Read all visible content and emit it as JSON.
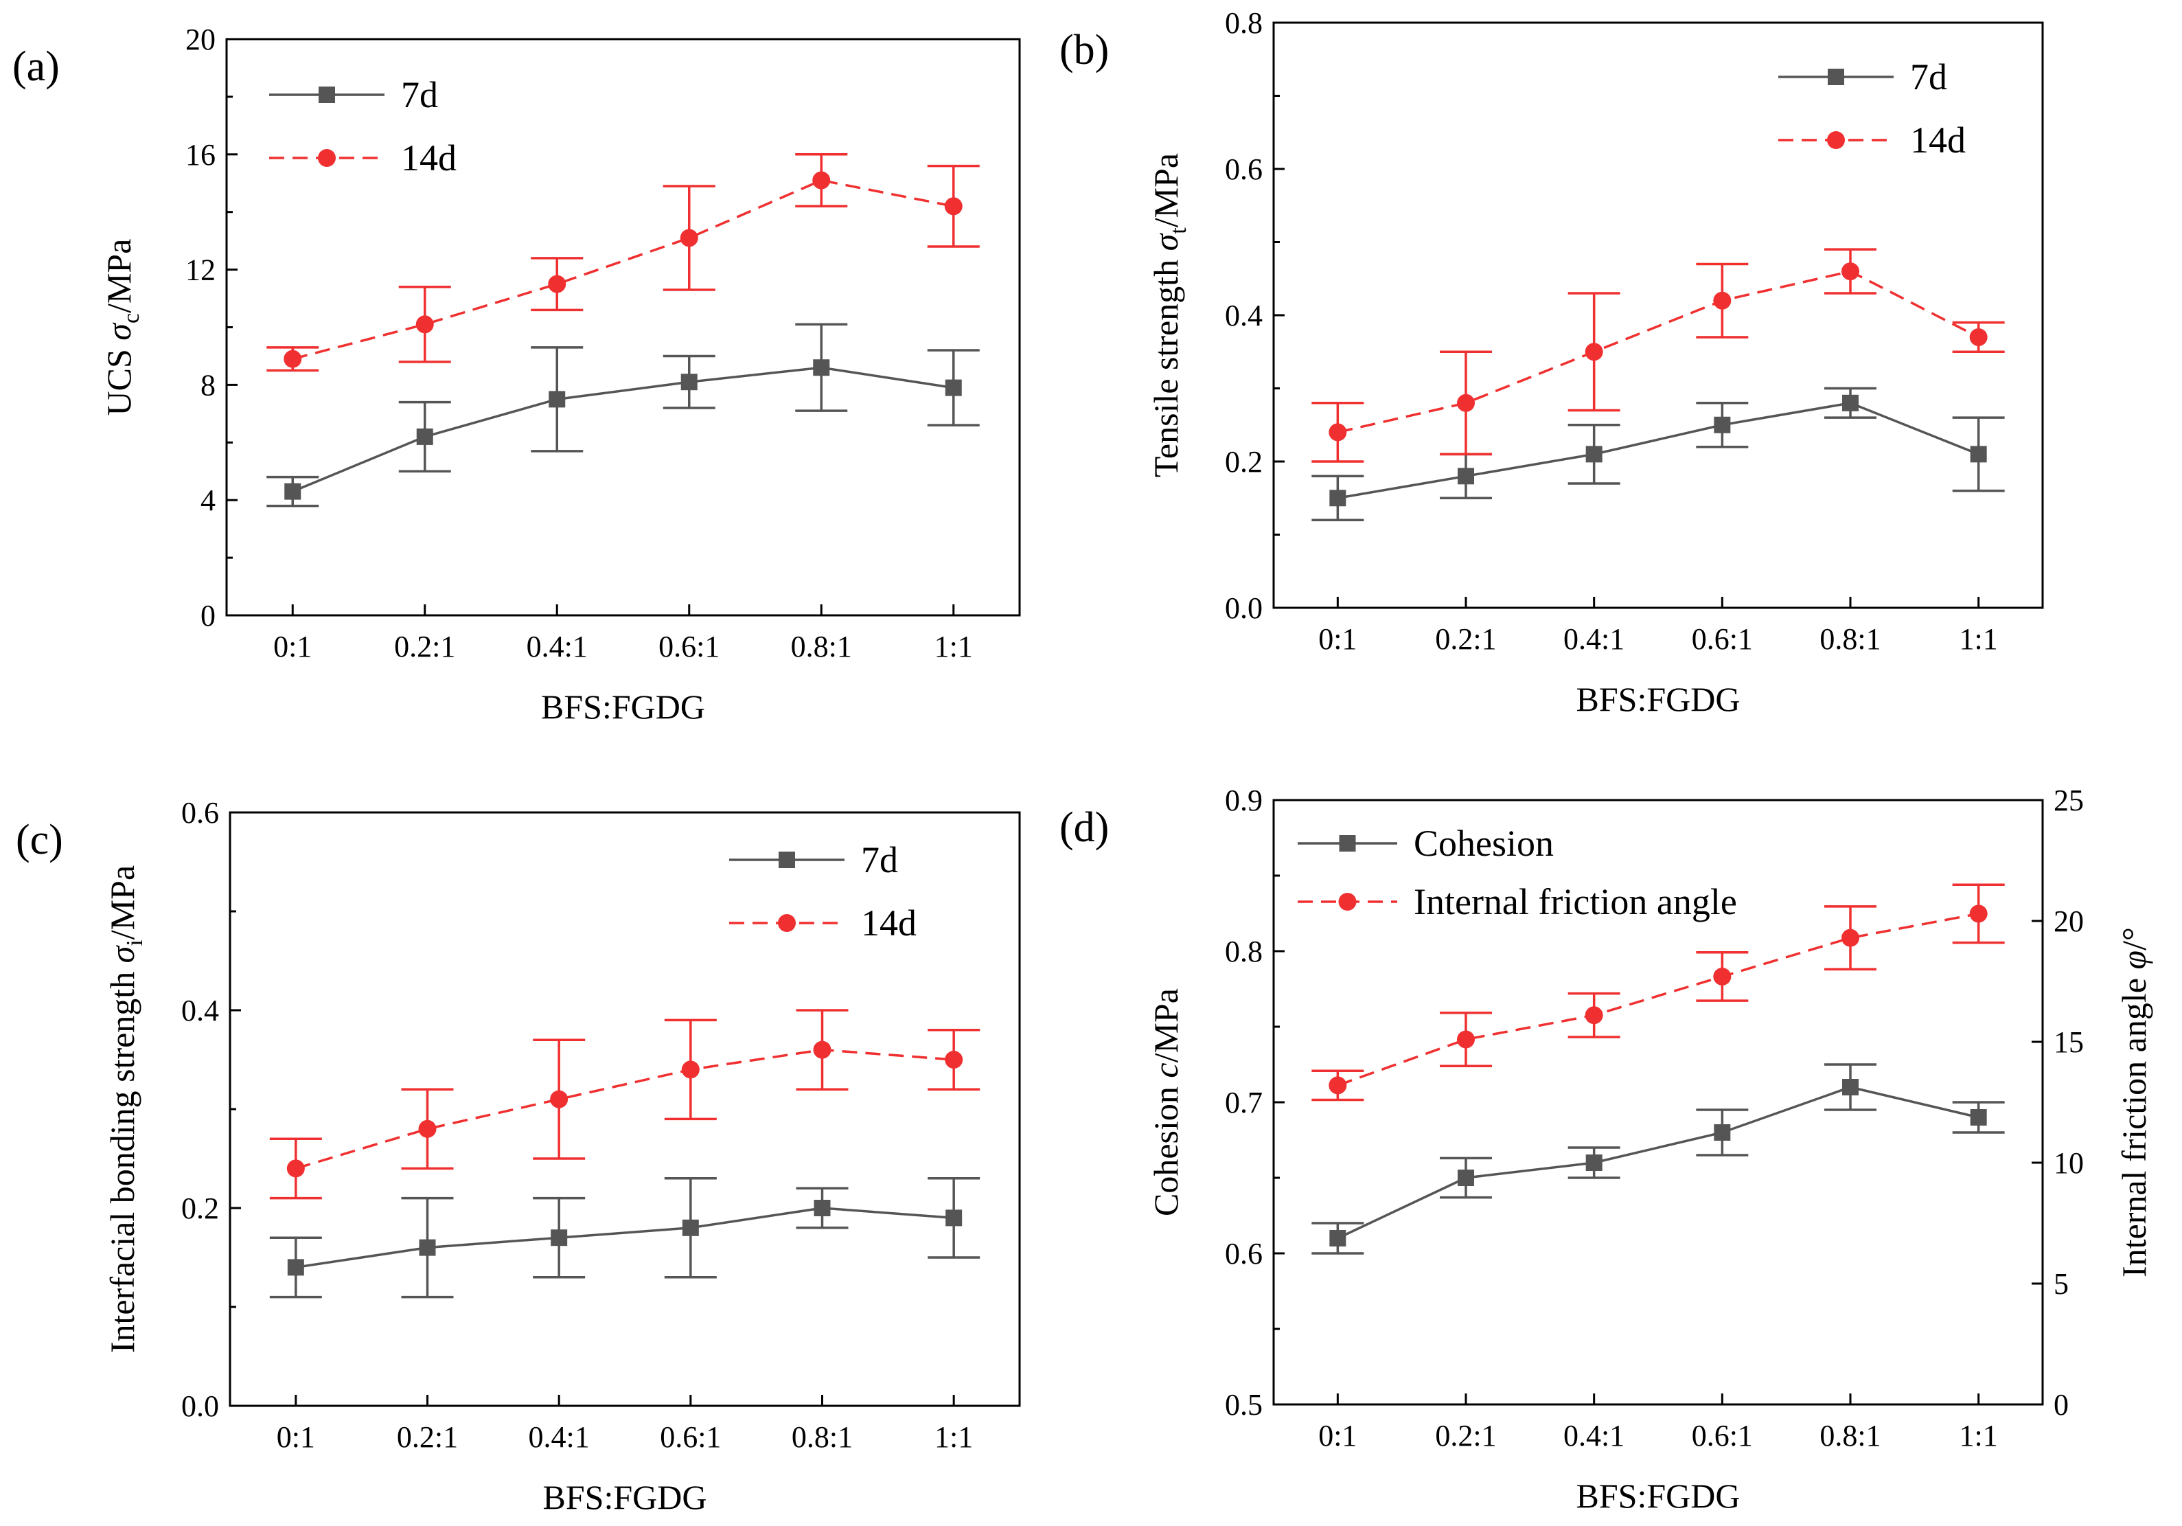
{
  "chart_data": [
    {
      "panel": "(a)",
      "type": "line",
      "categories": [
        "0:1",
        "0.2:1",
        "0.4:1",
        "0.6:1",
        "0.8:1",
        "1:1"
      ],
      "xlabel": "BFS:FGDG",
      "ylabel": {
        "main": "UCS ",
        "sym": "σ",
        "sub": "c",
        "unit": "/MPa"
      },
      "ylim": [
        0,
        20
      ],
      "yticks": [
        0,
        4,
        8,
        12,
        16,
        20
      ],
      "ytick_labels": [
        "0",
        "4",
        "8",
        "12",
        "16",
        "20"
      ],
      "legend_position": "top-left",
      "series": [
        {
          "name": "7d",
          "marker": "square",
          "dash": "solid",
          "color": "#555555",
          "values": [
            4.3,
            6.2,
            7.5,
            8.1,
            8.6,
            7.9
          ],
          "errors": [
            0.5,
            1.2,
            1.8,
            0.9,
            1.5,
            1.3
          ]
        },
        {
          "name": "14d",
          "marker": "circle",
          "dash": "dashed",
          "color": "#f03030",
          "values": [
            8.9,
            10.1,
            11.5,
            13.1,
            15.1,
            14.2
          ],
          "errors": [
            0.4,
            1.3,
            0.9,
            1.8,
            0.9,
            1.4
          ]
        }
      ]
    },
    {
      "panel": "(b)",
      "type": "line",
      "categories": [
        "0:1",
        "0.2:1",
        "0.4:1",
        "0.6:1",
        "0.8:1",
        "1:1"
      ],
      "xlabel": "BFS:FGDG",
      "ylabel": {
        "main": "Tensile strength ",
        "sym": "σ",
        "sub": "t",
        "unit": "/MPa"
      },
      "ylim": [
        0,
        0.8
      ],
      "yticks": [
        0,
        0.2,
        0.4,
        0.6,
        0.8
      ],
      "ytick_labels": [
        "0.0",
        "0.2",
        "0.4",
        "0.6",
        "0.8"
      ],
      "legend_position": "top-right",
      "series": [
        {
          "name": "7d",
          "marker": "square",
          "dash": "solid",
          "color": "#555555",
          "values": [
            0.15,
            0.18,
            0.21,
            0.25,
            0.28,
            0.21
          ],
          "errors": [
            0.03,
            0.03,
            0.04,
            0.03,
            0.02,
            0.05
          ]
        },
        {
          "name": "14d",
          "marker": "circle",
          "dash": "dashed",
          "color": "#f03030",
          "values": [
            0.24,
            0.28,
            0.35,
            0.42,
            0.46,
            0.37
          ],
          "errors": [
            0.04,
            0.07,
            0.08,
            0.05,
            0.03,
            0.02
          ]
        }
      ]
    },
    {
      "panel": "(c)",
      "type": "line",
      "categories": [
        "0:1",
        "0.2:1",
        "0.4:1",
        "0.6:1",
        "0.8:1",
        "1:1"
      ],
      "xlabel": "BFS:FGDG",
      "ylabel": {
        "main": "Interfacial bonding strength ",
        "sym": "σ",
        "sub": "i",
        "unit": "/MPa"
      },
      "ylim": [
        0,
        0.6
      ],
      "yticks": [
        0,
        0.2,
        0.4,
        0.6
      ],
      "ytick_labels": [
        "0.0",
        "0.2",
        "0.4",
        "0.6"
      ],
      "legend_position": "top-right",
      "series": [
        {
          "name": "7d",
          "marker": "square",
          "dash": "solid",
          "color": "#555555",
          "values": [
            0.14,
            0.16,
            0.17,
            0.18,
            0.2,
            0.19
          ],
          "errors": [
            0.03,
            0.05,
            0.04,
            0.05,
            0.02,
            0.04
          ]
        },
        {
          "name": "14d",
          "marker": "circle",
          "dash": "dashed",
          "color": "#f03030",
          "values": [
            0.24,
            0.28,
            0.31,
            0.34,
            0.36,
            0.35
          ],
          "errors": [
            0.03,
            0.04,
            0.06,
            0.05,
            0.04,
            0.03
          ]
        }
      ]
    },
    {
      "panel": "(d)",
      "type": "line",
      "categories": [
        "0:1",
        "0.2:1",
        "0.4:1",
        "0.6:1",
        "0.8:1",
        "1:1"
      ],
      "xlabel": "BFS:FGDG",
      "ylabel": {
        "main": "Cohesion ",
        "sym": "c",
        "sub": "",
        "unit": "/MPa"
      },
      "ylim": [
        0.5,
        0.9
      ],
      "yticks": [
        0.5,
        0.6,
        0.7,
        0.8,
        0.9
      ],
      "ytick_labels": [
        "0.5",
        "0.6",
        "0.7",
        "0.8",
        "0.9"
      ],
      "y2label": {
        "main": "Internal friction angle ",
        "sym": "φ",
        "unit": "/°"
      },
      "y2lim": [
        0,
        25
      ],
      "y2ticks": [
        0,
        5,
        10,
        15,
        20,
        25
      ],
      "y2tick_labels": [
        "0",
        "5",
        "10",
        "15",
        "20",
        "25"
      ],
      "legend_position": "top-left",
      "series": [
        {
          "name": "Cohesion",
          "axis": "left",
          "marker": "square",
          "dash": "solid",
          "color": "#555555",
          "values": [
            0.61,
            0.65,
            0.66,
            0.68,
            0.71,
            0.69
          ],
          "errors": [
            0.01,
            0.013,
            0.01,
            0.015,
            0.015,
            0.01
          ]
        },
        {
          "name": "Internal friction angle",
          "axis": "right",
          "marker": "circle",
          "dash": "dashed",
          "color": "#f03030",
          "values": [
            13.2,
            15.1,
            16.1,
            17.7,
            19.3,
            20.3
          ],
          "errors": [
            0.6,
            1.1,
            0.9,
            1.0,
            1.3,
            1.2
          ]
        }
      ]
    }
  ]
}
